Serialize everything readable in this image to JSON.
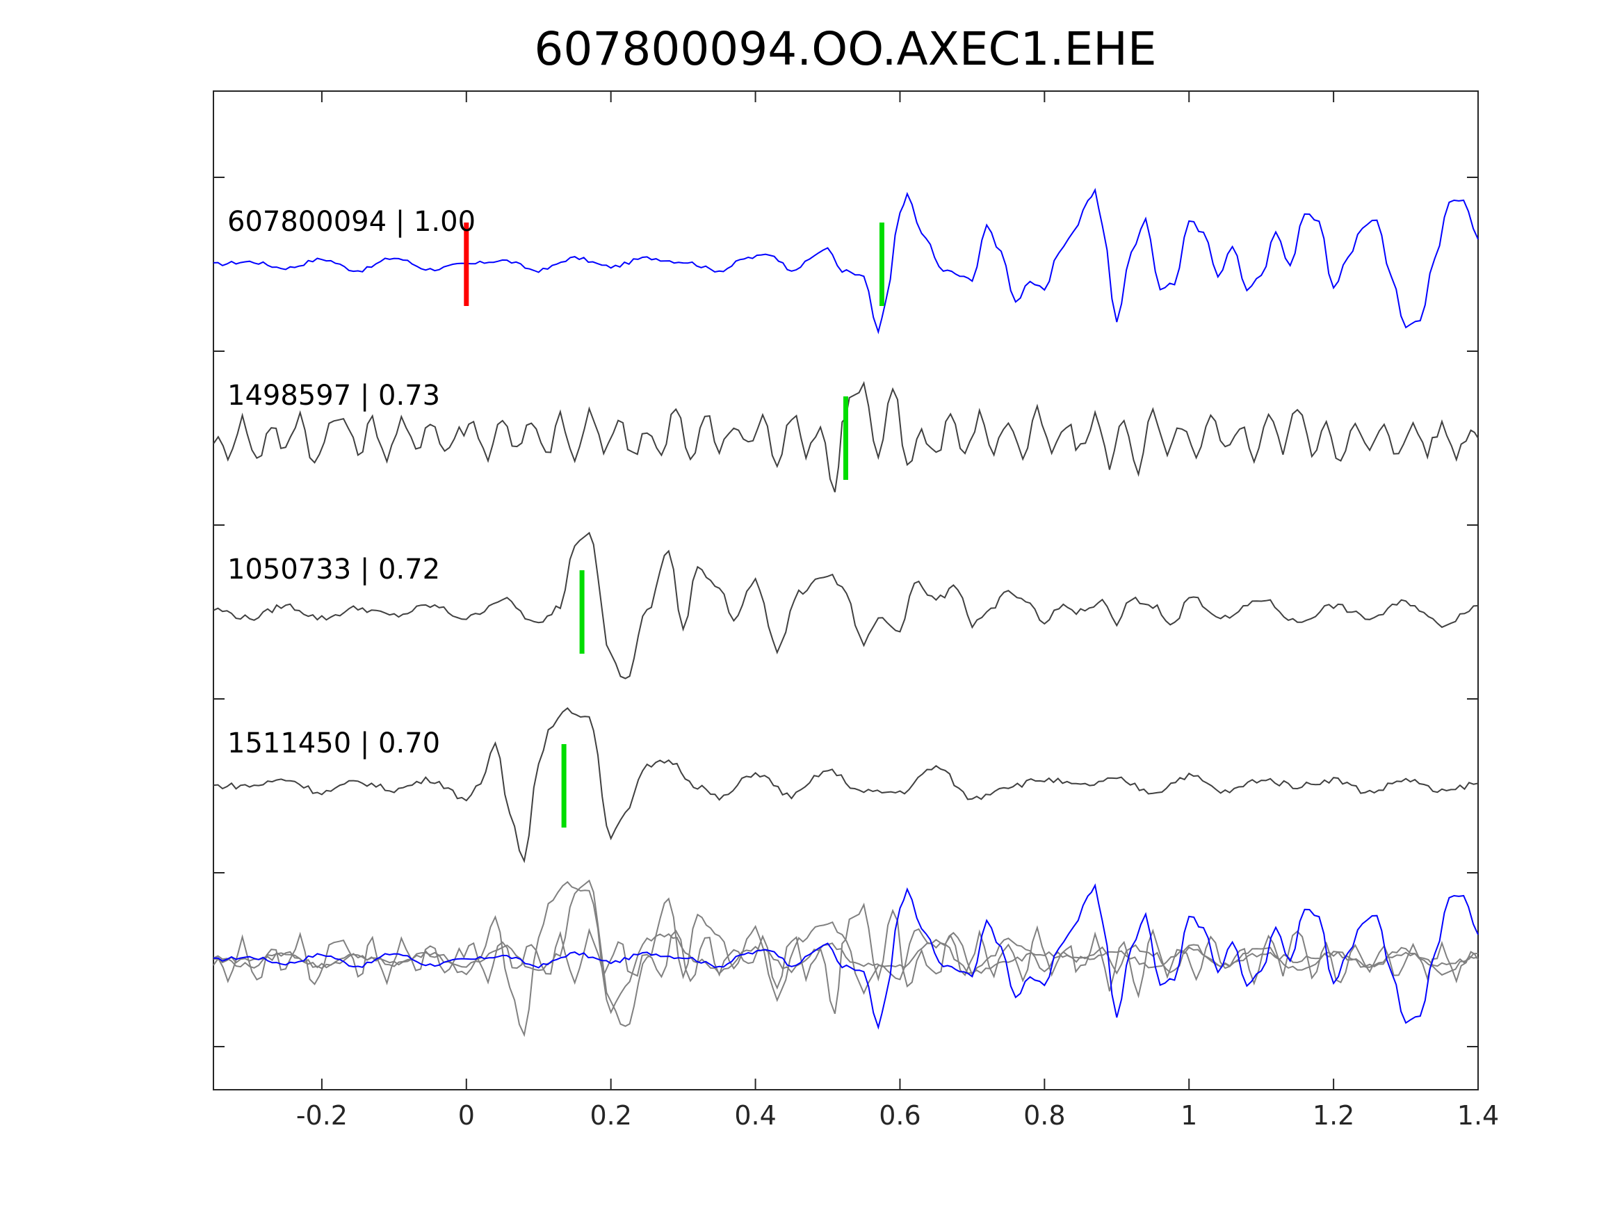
{
  "chart_data": {
    "type": "line",
    "title": "607800094.OO.AXEC1.EHE",
    "xlabel": "",
    "ylabel": "",
    "xlim": [
      -0.35,
      1.4
    ],
    "xticks": [
      -0.2,
      0,
      0.2,
      0.4,
      0.6,
      0.8,
      1,
      1.2,
      1.4
    ],
    "xtick_labels": [
      "-0.2",
      "0",
      "0.2",
      "0.4",
      "0.6",
      "0.8",
      "1",
      "1.2",
      "1.4"
    ],
    "grid": false,
    "colors": {
      "reference": "#0000ff",
      "template": "#404040",
      "overlay": "#808080",
      "reference_pick": "#ff0000",
      "template_pick": "#00dd00",
      "axes": "#262626"
    },
    "traces": [
      {
        "label": "607800094 | 1.00",
        "role": "reference",
        "pick": 0.0,
        "aligned_pick": 0.575,
        "x": [
          -0.35,
          -0.3,
          -0.25,
          -0.2,
          -0.15,
          -0.1,
          -0.05,
          0,
          0.05,
          0.1,
          0.15,
          0.2,
          0.25,
          0.3,
          0.35,
          0.39,
          0.42,
          0.45,
          0.5,
          0.52,
          0.55,
          0.57,
          0.58,
          0.6,
          0.61,
          0.63,
          0.66,
          0.7,
          0.72,
          0.74,
          0.76,
          0.78,
          0.8,
          0.82,
          0.84,
          0.86,
          0.87,
          0.88,
          0.9,
          0.92,
          0.94,
          0.96,
          0.98,
          1.0,
          1.02,
          1.04,
          1.06,
          1.08,
          1.1,
          1.12,
          1.14,
          1.16,
          1.18,
          1.2,
          1.22,
          1.24,
          1.26,
          1.28,
          1.3,
          1.32,
          1.34,
          1.36,
          1.38,
          1.4
        ],
        "y": [
          0.0,
          0.02,
          -0.03,
          0.04,
          -0.05,
          0.05,
          -0.04,
          0.0,
          0.03,
          -0.05,
          0.05,
          -0.02,
          0.05,
          0.02,
          -0.05,
          0.05,
          0.08,
          -0.04,
          0.12,
          -0.05,
          -0.1,
          -0.55,
          -0.3,
          0.4,
          0.55,
          0.25,
          -0.05,
          -0.12,
          0.3,
          0.1,
          -0.3,
          -0.15,
          -0.2,
          0.1,
          0.25,
          0.5,
          0.6,
          0.3,
          -0.45,
          0.1,
          0.35,
          -0.2,
          -0.15,
          0.35,
          0.25,
          -0.1,
          0.15,
          -0.2,
          -0.1,
          0.25,
          0.0,
          0.4,
          0.35,
          -0.2,
          0.05,
          0.3,
          0.35,
          -0.1,
          -0.5,
          -0.45,
          0.05,
          0.5,
          0.5,
          0.2
        ]
      },
      {
        "label": "1498597 | 0.73",
        "role": "template",
        "pick": 0.525,
        "x": [
          -0.35,
          -0.33,
          -0.31,
          -0.29,
          -0.27,
          -0.25,
          -0.23,
          -0.21,
          -0.19,
          -0.17,
          -0.15,
          -0.13,
          -0.11,
          -0.09,
          -0.07,
          -0.05,
          -0.03,
          -0.01,
          0.01,
          0.03,
          0.05,
          0.07,
          0.09,
          0.11,
          0.13,
          0.15,
          0.17,
          0.19,
          0.21,
          0.23,
          0.25,
          0.27,
          0.29,
          0.31,
          0.33,
          0.35,
          0.37,
          0.39,
          0.41,
          0.43,
          0.45,
          0.47,
          0.49,
          0.51,
          0.52,
          0.53,
          0.55,
          0.57,
          0.59,
          0.61,
          0.63,
          0.65,
          0.67,
          0.69,
          0.71,
          0.73,
          0.75,
          0.77,
          0.79,
          0.81,
          0.83,
          0.85,
          0.87,
          0.89,
          0.91,
          0.93,
          0.95,
          0.97,
          0.99,
          1.01,
          1.03,
          1.05,
          1.07,
          1.09,
          1.11,
          1.13,
          1.15,
          1.17,
          1.19,
          1.21,
          1.23,
          1.25,
          1.27,
          1.29,
          1.31,
          1.33,
          1.35,
          1.37,
          1.39,
          1.4
        ],
        "y": [
          0.0,
          -0.12,
          0.15,
          -0.18,
          0.12,
          -0.1,
          0.18,
          -0.2,
          0.1,
          0.16,
          -0.12,
          0.14,
          -0.15,
          0.12,
          -0.08,
          0.15,
          -0.1,
          0.05,
          0.12,
          -0.15,
          0.18,
          -0.1,
          0.12,
          -0.14,
          0.16,
          -0.18,
          0.2,
          -0.1,
          0.15,
          -0.12,
          0.08,
          -0.15,
          0.25,
          -0.2,
          0.2,
          -0.1,
          0.1,
          -0.05,
          0.15,
          -0.18,
          0.2,
          -0.1,
          0.1,
          -0.45,
          0.1,
          0.3,
          0.4,
          -0.2,
          0.42,
          -0.2,
          0.05,
          -0.12,
          0.2,
          -0.15,
          0.18,
          -0.1,
          0.15,
          -0.15,
          0.2,
          -0.12,
          0.1,
          -0.1,
          0.18,
          -0.2,
          0.15,
          -0.25,
          0.2,
          -0.15,
          0.12,
          -0.18,
          0.15,
          -0.1,
          0.12,
          -0.15,
          0.2,
          -0.1,
          0.28,
          -0.12,
          0.15,
          -0.2,
          0.1,
          -0.12,
          0.14,
          -0.15,
          0.12,
          -0.1,
          0.1,
          -0.12,
          0.08,
          0.0
        ]
      },
      {
        "label": "1050733 | 0.72",
        "role": "template",
        "pick": 0.16,
        "x": [
          -0.35,
          -0.3,
          -0.25,
          -0.2,
          -0.15,
          -0.1,
          -0.05,
          0,
          0.05,
          0.1,
          0.13,
          0.15,
          0.17,
          0.2,
          0.22,
          0.25,
          0.28,
          0.3,
          0.32,
          0.35,
          0.37,
          0.4,
          0.43,
          0.46,
          0.5,
          0.52,
          0.55,
          0.57,
          0.6,
          0.62,
          0.65,
          0.68,
          0.7,
          0.72,
          0.75,
          0.78,
          0.8,
          0.82,
          0.85,
          0.88,
          0.9,
          0.92,
          0.95,
          0.98,
          1.0,
          1.05,
          1.1,
          1.15,
          1.2,
          1.25,
          1.3,
          1.35,
          1.4
        ],
        "y": [
          0.02,
          -0.05,
          0.05,
          -0.05,
          0.03,
          -0.03,
          0.05,
          -0.05,
          0.1,
          -0.1,
          0.05,
          0.55,
          0.65,
          -0.35,
          -0.55,
          0.0,
          0.5,
          -0.15,
          0.35,
          0.2,
          -0.05,
          0.25,
          -0.3,
          0.15,
          0.3,
          0.2,
          -0.25,
          -0.05,
          -0.15,
          0.25,
          0.1,
          0.2,
          -0.1,
          0.0,
          0.15,
          0.05,
          -0.1,
          0.05,
          0.0,
          0.08,
          -0.1,
          0.1,
          0.05,
          -0.1,
          0.12,
          -0.05,
          0.1,
          -0.08,
          0.05,
          -0.05,
          0.08,
          -0.1,
          0.05
        ]
      },
      {
        "label": "1511450 | 0.70",
        "role": "template",
        "pick": 0.135,
        "x": [
          -0.35,
          -0.3,
          -0.25,
          -0.2,
          -0.15,
          -0.1,
          -0.05,
          0,
          0.02,
          0.04,
          0.06,
          0.08,
          0.1,
          0.12,
          0.14,
          0.17,
          0.2,
          0.22,
          0.25,
          0.28,
          0.32,
          0.35,
          0.4,
          0.45,
          0.5,
          0.55,
          0.6,
          0.65,
          0.7,
          0.75,
          0.8,
          0.85,
          0.9,
          0.95,
          1.0,
          1.05,
          1.1,
          1.15,
          1.2,
          1.25,
          1.3,
          1.35,
          1.4
        ],
        "y": [
          0.0,
          0.0,
          0.05,
          -0.05,
          0.03,
          -0.03,
          0.05,
          -0.1,
          0.0,
          0.35,
          -0.2,
          -0.6,
          0.2,
          0.5,
          0.6,
          0.55,
          -0.4,
          -0.2,
          0.15,
          0.2,
          0.0,
          -0.1,
          0.1,
          -0.08,
          0.12,
          -0.05,
          -0.05,
          0.15,
          -0.1,
          0.0,
          0.05,
          0.0,
          0.05,
          -0.05,
          0.08,
          -0.05,
          0.05,
          0.0,
          0.05,
          -0.05,
          0.05,
          -0.05,
          0.02
        ]
      }
    ],
    "overlay": {
      "description_order": [
        "reference",
        "1498597",
        "1050733",
        "1511450"
      ]
    }
  }
}
